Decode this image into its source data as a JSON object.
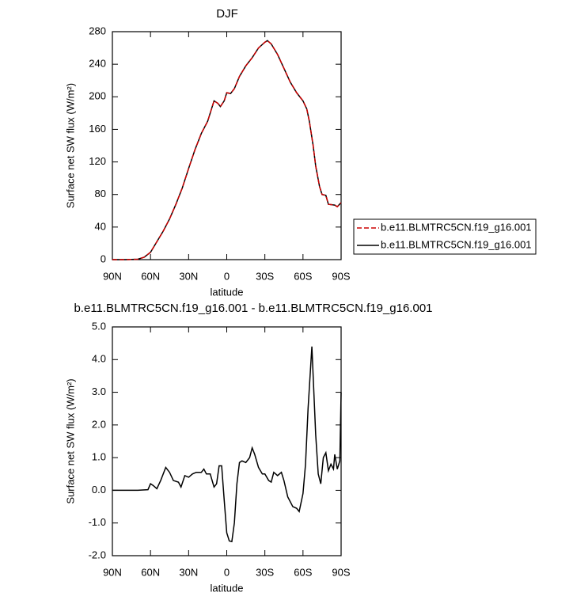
{
  "chart_data": [
    {
      "type": "line",
      "title": "DJF",
      "xlabel": "latitude",
      "ylabel": "Surface net SW flux (W/m²)",
      "xlim": [
        90,
        -90
      ],
      "ylim": [
        0,
        280
      ],
      "xticks": [
        {
          "value": 90,
          "label": "90N"
        },
        {
          "value": 60,
          "label": "60N"
        },
        {
          "value": 30,
          "label": "30N"
        },
        0,
        {
          "value": -30,
          "label": "30S"
        },
        {
          "value": -60,
          "label": "60S"
        },
        {
          "value": -90,
          "label": "90S"
        }
      ],
      "yticks": [
        0,
        40,
        80,
        120,
        160,
        200,
        240,
        280
      ],
      "x": [
        90,
        80,
        70,
        65,
        60,
        55,
        50,
        45,
        40,
        35,
        30,
        25,
        20,
        15,
        12,
        10,
        7,
        5,
        2,
        0,
        -3,
        -6,
        -10,
        -15,
        -20,
        -25,
        -30,
        -32,
        -35,
        -40,
        -45,
        -50,
        -55,
        -60,
        -63,
        -65,
        -68,
        -70,
        -73,
        -75,
        -78,
        -80,
        -85,
        -87,
        -90
      ],
      "series": [
        {
          "name": "b.e11.BLMTRC5CN.f19_g16.001",
          "color": "#cc0000",
          "dash": true,
          "values": [
            0,
            0,
            0.5,
            3,
            9,
            22,
            35,
            50,
            68,
            88,
            112,
            135,
            155,
            170,
            185,
            195,
            192,
            188,
            195,
            205,
            204,
            210,
            225,
            238,
            248,
            260,
            267,
            269,
            265,
            252,
            235,
            218,
            205,
            195,
            185,
            170,
            140,
            115,
            90,
            80,
            79,
            68,
            67,
            65,
            70
          ]
        },
        {
          "name": "b.e11.BLMTRC5CN.f19_g16.001",
          "color": "#000000",
          "dash": false,
          "values": [
            0,
            0,
            0.5,
            3,
            9,
            22,
            35,
            50,
            68,
            88,
            112,
            135,
            155,
            170,
            185,
            195,
            192,
            188,
            195,
            205,
            204,
            210,
            225,
            238,
            248,
            260,
            267,
            269,
            265,
            252,
            235,
            218,
            205,
            195,
            185,
            170,
            140,
            115,
            90,
            80,
            79,
            68,
            67,
            65,
            70
          ]
        }
      ]
    },
    {
      "type": "line",
      "title": "b.e11.BLMTRC5CN.f19_g16.001 - b.e11.BLMTRC5CN.f19_g16.001",
      "xlabel": "latitude",
      "ylabel": "Surface net SW flux (W/m²)",
      "xlim": [
        90,
        -90
      ],
      "ylim": [
        -2,
        5
      ],
      "xticks": [
        {
          "value": 90,
          "label": "90N"
        },
        {
          "value": 60,
          "label": "60N"
        },
        {
          "value": 30,
          "label": "30N"
        },
        0,
        {
          "value": -30,
          "label": "30S"
        },
        {
          "value": -60,
          "label": "60S"
        },
        {
          "value": -90,
          "label": "90S"
        }
      ],
      "yticks": [
        {
          "value": -2,
          "label": "-2.0"
        },
        {
          "value": -1,
          "label": "-1.0"
        },
        {
          "value": 0,
          "label": "0.0"
        },
        {
          "value": 1,
          "label": "1.0"
        },
        {
          "value": 2,
          "label": "2.0"
        },
        {
          "value": 3,
          "label": "3.0"
        },
        {
          "value": 4,
          "label": "4.0"
        },
        {
          "value": 5,
          "label": "5.0"
        }
      ],
      "x": [
        90,
        80,
        70,
        62,
        60,
        58,
        55,
        52,
        48,
        45,
        42,
        38,
        36,
        33,
        30,
        27,
        24,
        20,
        18,
        16,
        13,
        10,
        8,
        6,
        4,
        2,
        0,
        -2,
        -4,
        -6,
        -8,
        -10,
        -12,
        -15,
        -18,
        -20,
        -22,
        -25,
        -28,
        -30,
        -33,
        -35,
        -37,
        -40,
        -43,
        -45,
        -48,
        -52,
        -55,
        -57,
        -60,
        -62,
        -64,
        -67,
        -70,
        -72,
        -74,
        -76,
        -78,
        -80,
        -82,
        -84,
        -85,
        -87,
        -89,
        -90
      ],
      "series": [
        {
          "color": "#000000",
          "dash": false,
          "values": [
            0,
            0,
            0,
            0.02,
            0.2,
            0.15,
            0.05,
            0.3,
            0.7,
            0.55,
            0.3,
            0.25,
            0.1,
            0.45,
            0.4,
            0.5,
            0.55,
            0.55,
            0.65,
            0.5,
            0.5,
            0.1,
            0.2,
            0.75,
            0.75,
            -0.3,
            -1.3,
            -1.55,
            -1.57,
            -1.0,
            0.2,
            0.85,
            0.9,
            0.85,
            1.0,
            1.3,
            1.1,
            0.7,
            0.5,
            0.5,
            0.3,
            0.25,
            0.55,
            0.45,
            0.55,
            0.3,
            -0.2,
            -0.5,
            -0.55,
            -0.65,
            -0.1,
            0.8,
            2.5,
            4.4,
            1.7,
            0.5,
            0.2,
            1.0,
            1.15,
            0.6,
            0.8,
            0.65,
            1.1,
            0.65,
            0.9,
            3.0
          ]
        }
      ]
    }
  ]
}
